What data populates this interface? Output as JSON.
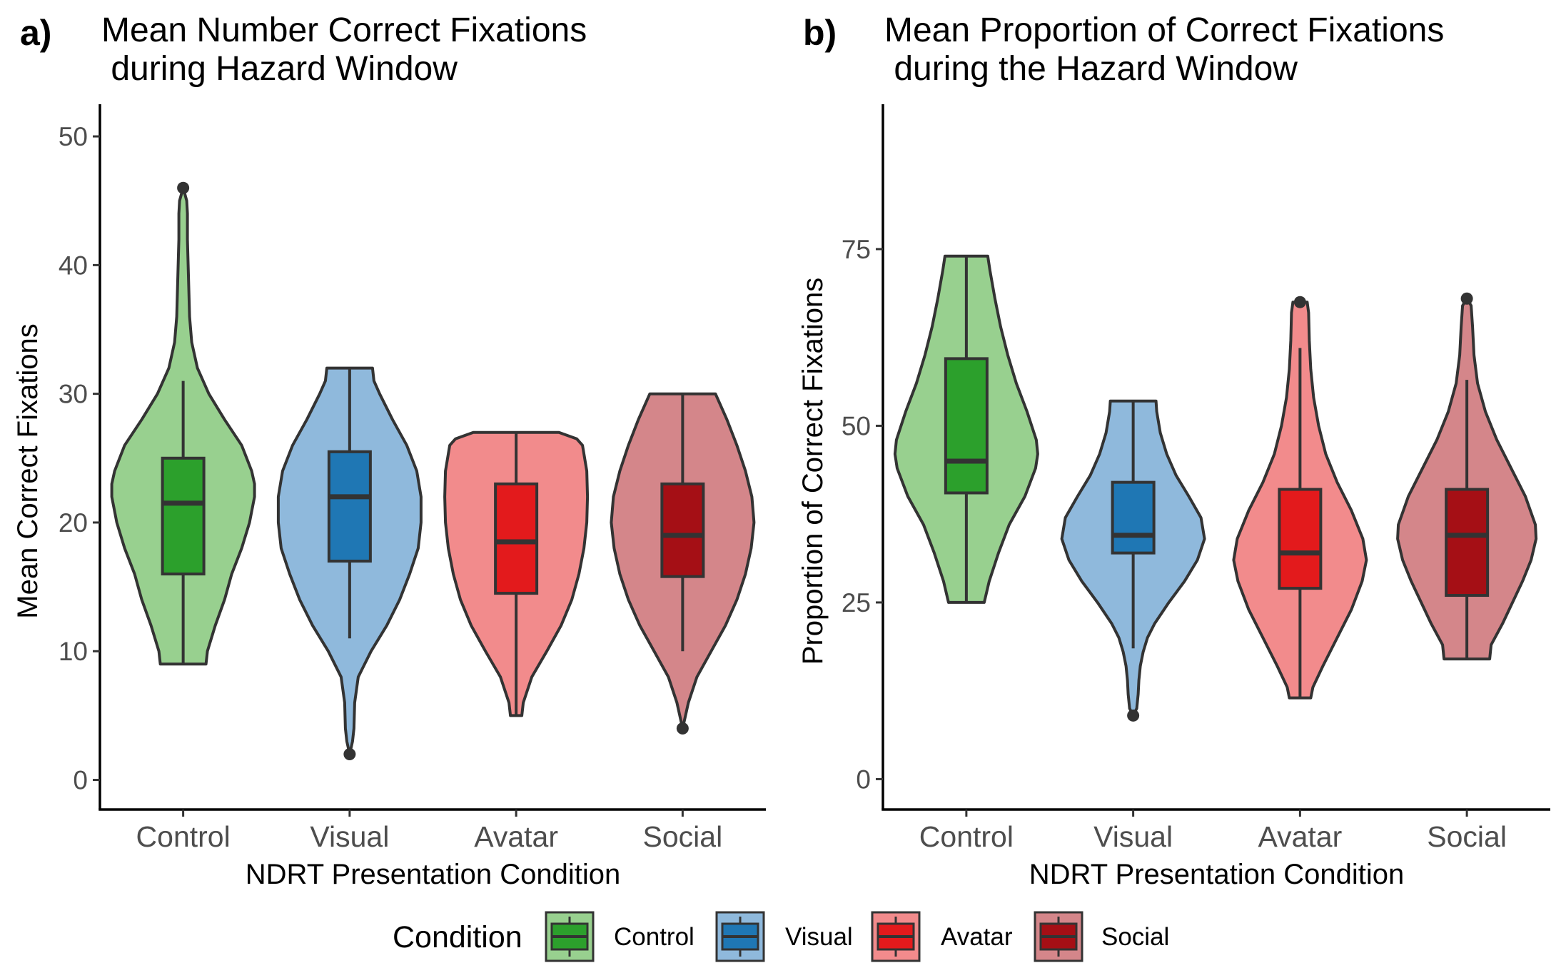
{
  "legend": {
    "title": "Condition",
    "entries": [
      {
        "label": "Control",
        "violin_color": "#98D08F",
        "box_color": "#2CA02C"
      },
      {
        "label": "Visual",
        "violin_color": "#8FB9DC",
        "box_color": "#1F77B4"
      },
      {
        "label": "Avatar",
        "violin_color": "#F28B8C",
        "box_color": "#E31A1C"
      },
      {
        "label": "Social",
        "violin_color": "#D4868A",
        "box_color": "#A50F15"
      }
    ]
  },
  "colors": {
    "outline": "#333333",
    "axis": "#000000",
    "tick_label": "#4D4D4D"
  },
  "chart_data": [
    {
      "panel_label": "a)",
      "type": "violin",
      "title_lines": [
        "Mean Number Correct Fixations",
        " during Hazard Window"
      ],
      "xlabel": "NDRT Presentation Condition",
      "ylabel": "Mean Correct Fixations",
      "categories": [
        "Control",
        "Visual",
        "Avatar",
        "Social"
      ],
      "ylim": [
        -2.3,
        52.5
      ],
      "yticks": [
        0,
        10,
        20,
        30,
        40,
        50
      ],
      "grid": false,
      "groups": [
        {
          "name": "Control",
          "q1": 16,
          "median": 21.5,
          "q3": 25,
          "whisker_low": 9,
          "whisker_high": 31,
          "outliers": [
            46
          ],
          "violin": [
            [
              9,
              0.32
            ],
            [
              10,
              0.34
            ],
            [
              12,
              0.45
            ],
            [
              14,
              0.58
            ],
            [
              16,
              0.68
            ],
            [
              18,
              0.82
            ],
            [
              20,
              0.93
            ],
            [
              22,
              1.0
            ],
            [
              23,
              1.0
            ],
            [
              24,
              0.96
            ],
            [
              26,
              0.82
            ],
            [
              28,
              0.58
            ],
            [
              30,
              0.36
            ],
            [
              32,
              0.2
            ],
            [
              34,
              0.12
            ],
            [
              36,
              0.09
            ],
            [
              38,
              0.08
            ],
            [
              40,
              0.07
            ],
            [
              42,
              0.06
            ],
            [
              44,
              0.06
            ],
            [
              45,
              0.05
            ],
            [
              46,
              0.0
            ]
          ]
        },
        {
          "name": "Visual",
          "q1": 17,
          "median": 22,
          "q3": 25.5,
          "whisker_low": 11,
          "whisker_high": 32,
          "outliers": [
            2
          ],
          "violin": [
            [
              2,
              0.0
            ],
            [
              3,
              0.04
            ],
            [
              4,
              0.06
            ],
            [
              6,
              0.07
            ],
            [
              8,
              0.12
            ],
            [
              10,
              0.3
            ],
            [
              12,
              0.52
            ],
            [
              14,
              0.7
            ],
            [
              16,
              0.84
            ],
            [
              18,
              0.96
            ],
            [
              20,
              1.0
            ],
            [
              22,
              1.0
            ],
            [
              24,
              0.94
            ],
            [
              26,
              0.8
            ],
            [
              28,
              0.6
            ],
            [
              30,
              0.42
            ],
            [
              31,
              0.34
            ],
            [
              32,
              0.32
            ]
          ]
        },
        {
          "name": "Avatar",
          "q1": 14.5,
          "median": 18.5,
          "q3": 23,
          "whisker_low": 5,
          "whisker_high": 27,
          "outliers": [],
          "violin": [
            [
              5,
              0.08
            ],
            [
              6,
              0.1
            ],
            [
              8,
              0.22
            ],
            [
              10,
              0.43
            ],
            [
              12,
              0.63
            ],
            [
              14,
              0.78
            ],
            [
              16,
              0.88
            ],
            [
              18,
              0.95
            ],
            [
              20,
              0.99
            ],
            [
              22,
              1.0
            ],
            [
              24,
              0.99
            ],
            [
              26,
              0.93
            ],
            [
              26.5,
              0.85
            ],
            [
              27,
              0.6
            ]
          ]
        },
        {
          "name": "Social",
          "q1": 15.8,
          "median": 19,
          "q3": 23,
          "whisker_low": 10,
          "whisker_high": 30,
          "outliers": [
            4
          ],
          "violin": [
            [
              4,
              0.0
            ],
            [
              5,
              0.04
            ],
            [
              6,
              0.08
            ],
            [
              8,
              0.2
            ],
            [
              10,
              0.4
            ],
            [
              12,
              0.6
            ],
            [
              14,
              0.76
            ],
            [
              16,
              0.88
            ],
            [
              18,
              0.96
            ],
            [
              20,
              1.0
            ],
            [
              22,
              0.97
            ],
            [
              24,
              0.88
            ],
            [
              26,
              0.76
            ],
            [
              28,
              0.62
            ],
            [
              29,
              0.54
            ],
            [
              30,
              0.46
            ]
          ]
        }
      ]
    },
    {
      "panel_label": "b)",
      "type": "violin",
      "title_lines": [
        "Mean Proportion of Correct Fixations",
        " during the Hazard Window"
      ],
      "xlabel": "NDRT Presentation Condition",
      "ylabel": "Proportion of Correct Fixations",
      "categories": [
        "Control",
        "Visual",
        "Avatar",
        "Social"
      ],
      "ylim": [
        -4.3,
        95.5
      ],
      "yticks": [
        0,
        25,
        50,
        75
      ],
      "grid": false,
      "groups": [
        {
          "name": "Control",
          "q1": 40.5,
          "median": 45,
          "q3": 59.5,
          "whisker_low": 25,
          "whisker_high": 74,
          "outliers": [],
          "violin": [
            [
              25,
              0.25
            ],
            [
              28,
              0.32
            ],
            [
              32,
              0.45
            ],
            [
              36,
              0.6
            ],
            [
              40,
              0.82
            ],
            [
              44,
              0.97
            ],
            [
              46,
              1.0
            ],
            [
              48,
              0.98
            ],
            [
              52,
              0.85
            ],
            [
              56,
              0.7
            ],
            [
              60,
              0.58
            ],
            [
              64,
              0.48
            ],
            [
              68,
              0.4
            ],
            [
              72,
              0.33
            ],
            [
              74,
              0.3
            ]
          ]
        },
        {
          "name": "Visual",
          "q1": 32,
          "median": 34.5,
          "q3": 42,
          "whisker_low": 18.5,
          "whisker_high": 53.5,
          "outliers": [
            9
          ],
          "violin": [
            [
              9,
              0.0
            ],
            [
              10,
              0.05
            ],
            [
              12,
              0.07
            ],
            [
              14,
              0.08
            ],
            [
              16,
              0.1
            ],
            [
              18,
              0.14
            ],
            [
              20,
              0.2
            ],
            [
              22,
              0.3
            ],
            [
              25,
              0.5
            ],
            [
              28,
              0.72
            ],
            [
              31,
              0.9
            ],
            [
              34,
              1.0
            ],
            [
              37,
              0.95
            ],
            [
              40,
              0.78
            ],
            [
              43,
              0.6
            ],
            [
              46,
              0.47
            ],
            [
              49,
              0.38
            ],
            [
              52,
              0.33
            ],
            [
              53.5,
              0.32
            ]
          ]
        },
        {
          "name": "Avatar",
          "q1": 27,
          "median": 32,
          "q3": 41,
          "whisker_low": 11.5,
          "whisker_high": 61,
          "outliers": [
            67.5
          ],
          "violin": [
            [
              11.5,
              0.15
            ],
            [
              13,
              0.18
            ],
            [
              16,
              0.32
            ],
            [
              20,
              0.52
            ],
            [
              24,
              0.72
            ],
            [
              28,
              0.87
            ],
            [
              31,
              0.93
            ],
            [
              34,
              0.88
            ],
            [
              38,
              0.72
            ],
            [
              42,
              0.52
            ],
            [
              46,
              0.36
            ],
            [
              50,
              0.26
            ],
            [
              54,
              0.19
            ],
            [
              58,
              0.15
            ],
            [
              62,
              0.13
            ],
            [
              66,
              0.12
            ],
            [
              67.5,
              0.1
            ]
          ]
        },
        {
          "name": "Social",
          "q1": 26,
          "median": 34.5,
          "q3": 41,
          "whisker_low": 17,
          "whisker_high": 56.5,
          "outliers": [
            68
          ],
          "violin": [
            [
              17,
              0.32
            ],
            [
              19,
              0.34
            ],
            [
              22,
              0.5
            ],
            [
              25,
              0.64
            ],
            [
              28,
              0.78
            ],
            [
              31,
              0.9
            ],
            [
              34,
              0.97
            ],
            [
              36,
              0.96
            ],
            [
              40,
              0.82
            ],
            [
              44,
              0.62
            ],
            [
              48,
              0.42
            ],
            [
              52,
              0.26
            ],
            [
              56,
              0.15
            ],
            [
              60,
              0.1
            ],
            [
              64,
              0.08
            ],
            [
              67,
              0.06
            ],
            [
              68,
              0.0
            ]
          ]
        }
      ]
    }
  ]
}
